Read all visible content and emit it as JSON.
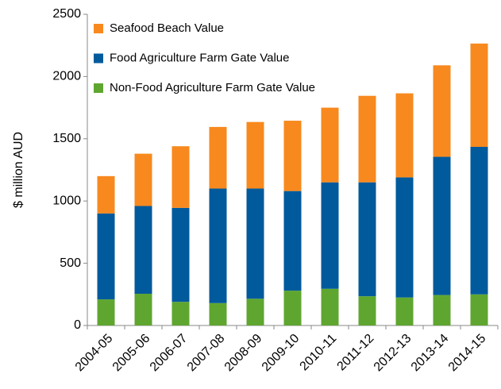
{
  "chart_data": {
    "type": "stacked_bar",
    "y_label": "$ million AUD",
    "categories": [
      "2004-05",
      "2005-06",
      "2006-07",
      "2007-08",
      "2008-09",
      "2009-10",
      "2010-11",
      "2011-12",
      "2012-13",
      "2013-14",
      "2014-15"
    ],
    "series": [
      {
        "name": "Non-Food Agriculture Farm Gate Value",
        "color": "#5fa630",
        "values": [
          210,
          255,
          190,
          180,
          215,
          280,
          295,
          235,
          225,
          245,
          250
        ]
      },
      {
        "name": "Food Agriculture Farm Gate Value",
        "color": "#005a9c",
        "values": [
          690,
          705,
          755,
          920,
          885,
          800,
          855,
          915,
          965,
          1110,
          1185
        ]
      },
      {
        "name": "Seafood Beach Value",
        "color": "#f7891e",
        "values": [
          300,
          420,
          495,
          495,
          535,
          565,
          600,
          695,
          675,
          735,
          830
        ]
      }
    ],
    "ylim": [
      0,
      2500
    ],
    "yticks": [
      0,
      500,
      1000,
      1500,
      2000,
      2500
    ],
    "legend": "upper left"
  }
}
